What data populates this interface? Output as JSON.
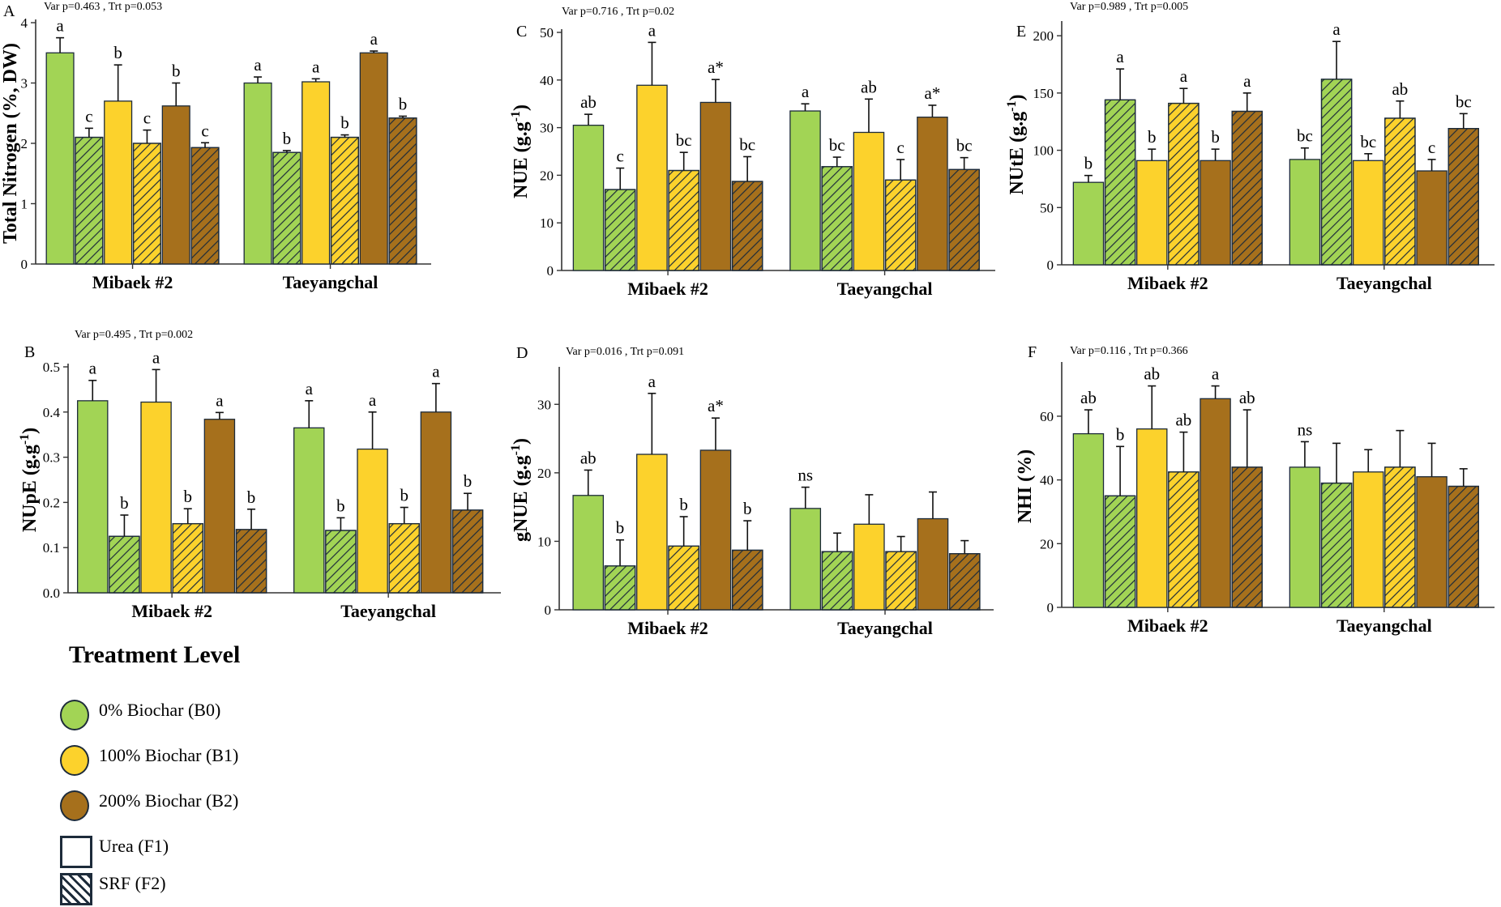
{
  "legend": {
    "title": "Treatment Level",
    "items": [
      {
        "label": "0%  Biochar (B0)",
        "kind": "color",
        "color": "#a2d455"
      },
      {
        "label": "100%  Biochar (B1)",
        "kind": "color",
        "color": "#fcd22c"
      },
      {
        "label": "200%  Biochar (B2)",
        "kind": "color",
        "color": "#a6701c"
      },
      {
        "label": "Urea (F1)",
        "kind": "plain"
      },
      {
        "label": "SRF (F2)",
        "kind": "hatch"
      }
    ]
  },
  "colors": {
    "B0": "#a2d455",
    "B1": "#fcd22c",
    "B2": "#a6701c",
    "outline": "#1d2b3a"
  },
  "chart_data": [
    {
      "panel": "A",
      "type": "bar",
      "annotation": "Var p=0.463 , Trt p=0.053",
      "ylabel": "Total Nitrogen (%, DW)",
      "ylim": [
        0,
        4
      ],
      "yticks": [
        0,
        1,
        2,
        3,
        4
      ],
      "groups": [
        "Mibaek #2",
        "Taeyangchal"
      ],
      "series": [
        {
          "name": "B0-F1",
          "values": [
            3.5,
            3.0
          ],
          "errors": [
            0.25,
            0.1
          ],
          "letters": [
            "a",
            "a"
          ]
        },
        {
          "name": "B0-F2",
          "values": [
            2.1,
            1.85
          ],
          "errors": [
            0.15,
            0.03
          ],
          "letters": [
            "c",
            "b"
          ]
        },
        {
          "name": "B1-F1",
          "values": [
            2.7,
            3.02
          ],
          "errors": [
            0.6,
            0.05
          ],
          "letters": [
            "b",
            "a"
          ]
        },
        {
          "name": "B1-F2",
          "values": [
            2.0,
            2.1
          ],
          "errors": [
            0.22,
            0.04
          ],
          "letters": [
            "c",
            "b"
          ]
        },
        {
          "name": "B2-F1",
          "values": [
            2.62,
            3.5
          ],
          "errors": [
            0.38,
            0.03
          ],
          "letters": [
            "b",
            "a"
          ]
        },
        {
          "name": "B2-F2",
          "values": [
            1.93,
            2.42
          ],
          "errors": [
            0.08,
            0.03
          ],
          "letters": [
            "c",
            "b"
          ]
        }
      ]
    },
    {
      "panel": "B",
      "type": "bar",
      "annotation": "Var p=0.495 , Trt p=0.002",
      "ylabel": "NUpE (g.g-1)",
      "ylim": [
        0,
        0.5
      ],
      "yticks": [
        0.0,
        0.1,
        0.2,
        0.3,
        0.4,
        0.5
      ],
      "groups": [
        "Mibaek #2",
        "Taeyangchal"
      ],
      "series": [
        {
          "name": "B0-F1",
          "values": [
            0.425,
            0.365
          ],
          "errors": [
            0.045,
            0.06
          ],
          "letters": [
            "a",
            "a"
          ]
        },
        {
          "name": "B0-F2",
          "values": [
            0.125,
            0.138
          ],
          "errors": [
            0.047,
            0.028
          ],
          "letters": [
            "b",
            "b"
          ]
        },
        {
          "name": "B1-F1",
          "values": [
            0.422,
            0.318
          ],
          "errors": [
            0.072,
            0.082
          ],
          "letters": [
            "a",
            "a"
          ]
        },
        {
          "name": "B1-F2",
          "values": [
            0.153,
            0.153
          ],
          "errors": [
            0.033,
            0.036
          ],
          "letters": [
            "b",
            "b"
          ]
        },
        {
          "name": "B2-F1",
          "values": [
            0.384,
            0.4
          ],
          "errors": [
            0.015,
            0.063
          ],
          "letters": [
            "a",
            "a"
          ]
        },
        {
          "name": "B2-F2",
          "values": [
            0.14,
            0.183
          ],
          "errors": [
            0.045,
            0.037
          ],
          "letters": [
            "b",
            "b"
          ]
        }
      ]
    },
    {
      "panel": "C",
      "type": "bar",
      "annotation": "Var p=0.716 , Trt p=0.02",
      "ylabel": "NUE (g.g-1)",
      "ylim": [
        0,
        50
      ],
      "yticks": [
        0,
        10,
        20,
        30,
        40,
        50
      ],
      "groups": [
        "Mibaek #2",
        "Taeyangchal"
      ],
      "series": [
        {
          "name": "B0-F1",
          "values": [
            30.5,
            33.5
          ],
          "errors": [
            2.3,
            1.5
          ],
          "letters": [
            "ab",
            "a"
          ]
        },
        {
          "name": "B0-F2",
          "values": [
            17.0,
            21.8
          ],
          "errors": [
            4.5,
            2.0
          ],
          "letters": [
            "c",
            "bc"
          ]
        },
        {
          "name": "B1-F1",
          "values": [
            38.9,
            29.0
          ],
          "errors": [
            9.0,
            7.0
          ],
          "letters": [
            "a",
            "ab"
          ]
        },
        {
          "name": "B1-F2",
          "values": [
            21.0,
            19.0
          ],
          "errors": [
            3.8,
            4.3
          ],
          "letters": [
            "bc",
            "c"
          ]
        },
        {
          "name": "B2-F1",
          "values": [
            35.3,
            32.2
          ],
          "errors": [
            4.8,
            2.5
          ],
          "letters": [
            "a*",
            "a*"
          ]
        },
        {
          "name": "B2-F2",
          "values": [
            18.7,
            21.2
          ],
          "errors": [
            5.2,
            2.5
          ],
          "letters": [
            "bc",
            "bc"
          ]
        }
      ]
    },
    {
      "panel": "D",
      "type": "bar",
      "annotation": "Var p=0.016 , Trt p=0.091",
      "ylabel": "gNUE (g.g-1)",
      "ylim": [
        0,
        35
      ],
      "yticks": [
        0,
        10,
        20,
        30
      ],
      "groups": [
        "Mibaek #2",
        "Taeyangchal"
      ],
      "series": [
        {
          "name": "B0-F1",
          "values": [
            16.7,
            14.8
          ],
          "errors": [
            3.7,
            3.1
          ],
          "letters": [
            "ab",
            "ns"
          ]
        },
        {
          "name": "B0-F2",
          "values": [
            6.4,
            8.5
          ],
          "errors": [
            3.8,
            2.7
          ],
          "letters": [
            "b",
            ""
          ]
        },
        {
          "name": "B1-F1",
          "values": [
            22.7,
            12.5
          ],
          "errors": [
            8.9,
            4.3
          ],
          "letters": [
            "a",
            ""
          ]
        },
        {
          "name": "B1-F2",
          "values": [
            9.3,
            8.5
          ],
          "errors": [
            4.3,
            2.2
          ],
          "letters": [
            "b",
            ""
          ]
        },
        {
          "name": "B2-F1",
          "values": [
            23.3,
            13.3
          ],
          "errors": [
            4.7,
            3.9
          ],
          "letters": [
            "a*",
            ""
          ]
        },
        {
          "name": "B2-F2",
          "values": [
            8.7,
            8.2
          ],
          "errors": [
            4.3,
            1.9
          ],
          "letters": [
            "b",
            ""
          ]
        }
      ]
    },
    {
      "panel": "E",
      "type": "bar",
      "annotation": "Var p=0.989 , Trt p=0.005",
      "ylabel": "NUtE (g.g-1)",
      "ylim": [
        0,
        210
      ],
      "yticks": [
        0,
        50,
        100,
        150,
        200
      ],
      "groups": [
        "Mibaek #2",
        "Taeyangchal"
      ],
      "series": [
        {
          "name": "B0-F1",
          "values": [
            72,
            92
          ],
          "errors": [
            6,
            10
          ],
          "letters": [
            "b",
            "bc"
          ]
        },
        {
          "name": "B0-F2",
          "values": [
            144,
            162
          ],
          "errors": [
            27,
            33
          ],
          "letters": [
            "a",
            "a"
          ]
        },
        {
          "name": "B1-F1",
          "values": [
            91,
            91
          ],
          "errors": [
            10,
            6
          ],
          "letters": [
            "b",
            "bc"
          ]
        },
        {
          "name": "B1-F2",
          "values": [
            141,
            128
          ],
          "errors": [
            13,
            15
          ],
          "letters": [
            "a",
            "ab"
          ]
        },
        {
          "name": "B2-F1",
          "values": [
            91,
            82
          ],
          "errors": [
            10,
            10
          ],
          "letters": [
            "b",
            "c"
          ]
        },
        {
          "name": "B2-F2",
          "values": [
            134,
            119
          ],
          "errors": [
            16,
            13
          ],
          "letters": [
            "a",
            "bc"
          ]
        }
      ]
    },
    {
      "panel": "F",
      "type": "bar",
      "annotation": "Var p=0.116 , Trt p=0.366",
      "ylabel": "NHI (%)",
      "ylim": [
        0,
        76
      ],
      "yticks": [
        0,
        20,
        40,
        60
      ],
      "groups": [
        "Mibaek #2",
        "Taeyangchal"
      ],
      "series": [
        {
          "name": "B0-F1",
          "values": [
            54.5,
            44.0
          ],
          "errors": [
            7.5,
            8.0
          ],
          "letters": [
            "ab",
            "ns"
          ]
        },
        {
          "name": "B0-F2",
          "values": [
            35.0,
            39.0
          ],
          "errors": [
            15.5,
            12.5
          ],
          "letters": [
            "b",
            ""
          ]
        },
        {
          "name": "B1-F1",
          "values": [
            56.0,
            42.5
          ],
          "errors": [
            13.5,
            7.0
          ],
          "letters": [
            "ab",
            ""
          ]
        },
        {
          "name": "B1-F2",
          "values": [
            42.5,
            44.0
          ],
          "errors": [
            12.5,
            11.5
          ],
          "letters": [
            "ab",
            ""
          ]
        },
        {
          "name": "B2-F1",
          "values": [
            65.5,
            41.0
          ],
          "errors": [
            4.0,
            10.5
          ],
          "letters": [
            "a",
            ""
          ]
        },
        {
          "name": "B2-F2",
          "values": [
            44.0,
            38.0
          ],
          "errors": [
            18.0,
            5.5
          ],
          "letters": [
            "ab",
            ""
          ]
        }
      ]
    }
  ]
}
